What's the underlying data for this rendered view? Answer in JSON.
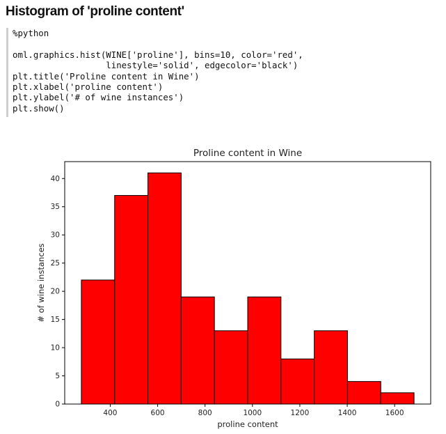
{
  "page": {
    "heading": "Histogram of 'proline content'"
  },
  "code_cell": {
    "lines": [
      "%python",
      "",
      "oml.graphics.hist(WINE['proline'], bins=10, color='red',",
      "                  linestyle='solid', edgecolor='black')",
      "plt.title('Proline content in Wine')",
      "plt.xlabel('proline content')",
      "plt.ylabel('# of wine instances')",
      "plt.show()"
    ]
  },
  "chart_data": {
    "type": "bar",
    "title": "Proline content in Wine",
    "xlabel": "proline content",
    "ylabel": "# of wine instances",
    "bin_edges": [
      278,
      418.4,
      558.8,
      699.2,
      839.6,
      980,
      1120.4,
      1260.8,
      1401.2,
      1541.6,
      1682
    ],
    "values": [
      22,
      37,
      41,
      19,
      13,
      19,
      8,
      13,
      4,
      2
    ],
    "xlim": [
      207.8,
      1752.2
    ],
    "ylim": [
      0,
      43
    ],
    "xticks": [
      400,
      600,
      800,
      1000,
      1200,
      1400,
      1600
    ],
    "yticks": [
      0,
      5,
      10,
      15,
      20,
      25,
      30,
      35,
      40
    ],
    "bar_color": "#ff0000",
    "edge_color": "#000000",
    "grid": false,
    "legend": "none"
  }
}
